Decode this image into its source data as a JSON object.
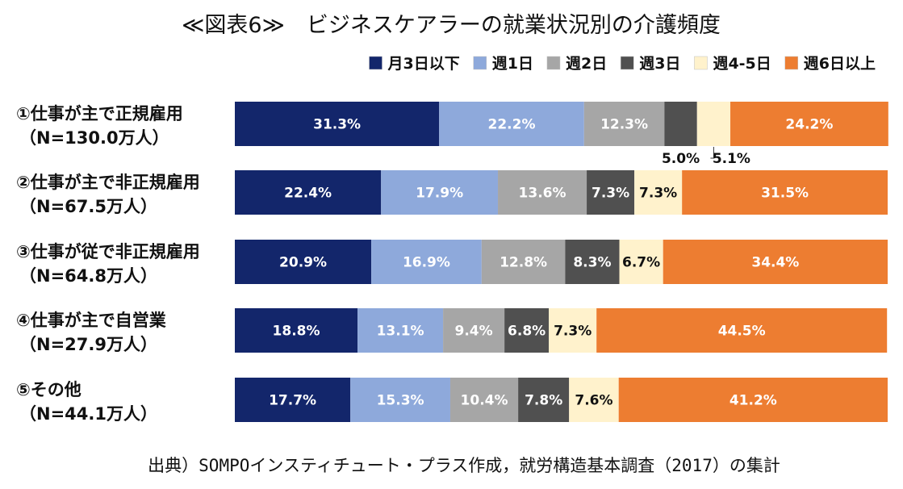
{
  "chart_data": {
    "type": "bar",
    "orientation": "horizontal",
    "stacked": "percent",
    "title": "≪図表6≫　ビジネスケアラーの就業状況別の介護頻度",
    "categories": [
      {
        "label": "①仕事が主で正規雇用",
        "sublabel": "（N=130.0万人）"
      },
      {
        "label": "②仕事が主で非正規雇用",
        "sublabel": "（N=67.5万人）"
      },
      {
        "label": "③仕事が従で非正規雇用",
        "sublabel": "（N=64.8万人）"
      },
      {
        "label": "④仕事が主で自営業",
        "sublabel": "（N=27.9万人）"
      },
      {
        "label": "⑤その他",
        "sublabel": "（N=44.1万人）"
      }
    ],
    "series": [
      {
        "name": "月3日以下",
        "color": "#13266b",
        "label_color": "#ffffff",
        "values": [
          31.3,
          22.4,
          20.9,
          18.8,
          17.7
        ],
        "labels": [
          "31.3%",
          "22.4%",
          "20.9%",
          "18.8%",
          "17.7%"
        ]
      },
      {
        "name": "週1日",
        "color": "#8ea9db",
        "label_color": "#ffffff",
        "values": [
          22.2,
          17.9,
          16.9,
          13.1,
          15.3
        ],
        "labels": [
          "22.2%",
          "17.9%",
          "16.9%",
          "13.1%",
          "15.3%"
        ]
      },
      {
        "name": "週2日",
        "color": "#a6a6a6",
        "label_color": "#ffffff",
        "values": [
          12.3,
          13.6,
          12.8,
          9.4,
          10.4
        ],
        "labels": [
          "12.3%",
          "13.6%",
          "12.8%",
          "9.4%",
          "10.4%"
        ]
      },
      {
        "name": "週3日",
        "color": "#505050",
        "label_color": "#ffffff",
        "values": [
          5.0,
          7.3,
          8.3,
          6.8,
          7.8
        ],
        "labels": [
          "5.0%",
          "7.3%",
          "8.3%",
          "6.8%",
          "7.8%"
        ]
      },
      {
        "name": "週4-5日",
        "color": "#fff2cc",
        "label_color": "#111111",
        "values": [
          5.1,
          7.3,
          6.7,
          7.3,
          7.6
        ],
        "labels": [
          "5.1%",
          "7.3%",
          "6.7%",
          "7.3%",
          "7.6%"
        ]
      },
      {
        "name": "週6日以上",
        "color": "#ed7d31",
        "label_color": "#ffffff",
        "values": [
          24.2,
          31.5,
          34.4,
          44.5,
          41.2
        ],
        "labels": [
          "24.2%",
          "31.5%",
          "34.4%",
          "44.5%",
          "41.2%"
        ]
      }
    ],
    "xlim": [
      0,
      100
    ],
    "grid": false,
    "legend_position": "top-right",
    "source": "出典）SOMPOインスティチュート・プラス作成，就労構造基本調査（2017）の集計"
  }
}
